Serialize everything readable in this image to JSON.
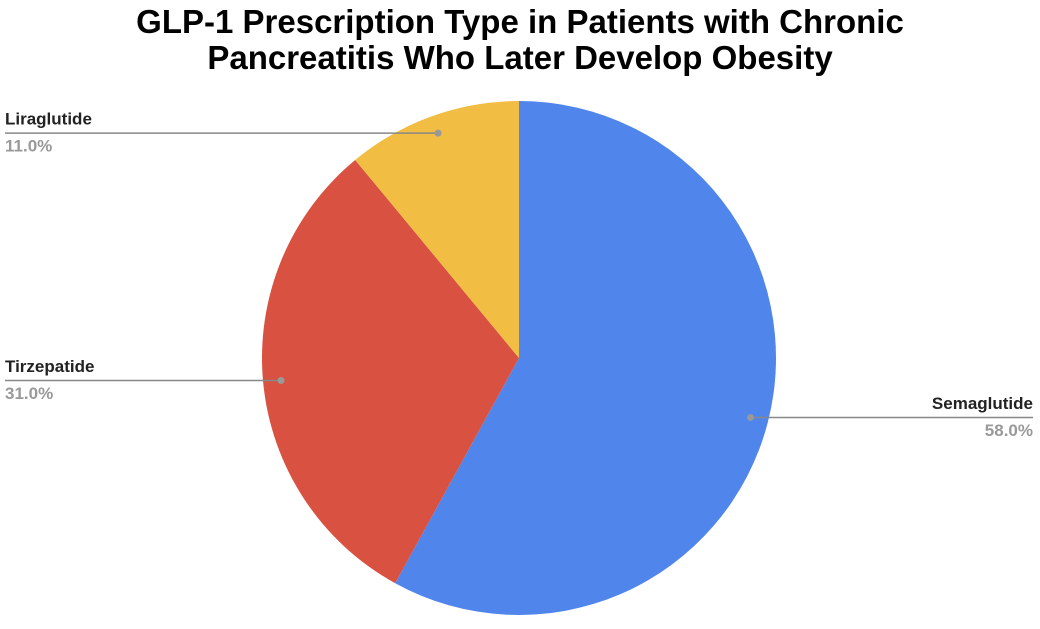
{
  "chart_data": {
    "type": "pie",
    "title": "GLP-1 Prescription Type in Patients with Chronic Pancreatitis Who Later Develop Obesity",
    "categories": [
      "Semaglutide",
      "Tirzepatide",
      "Liraglutide"
    ],
    "values": [
      58,
      31,
      11
    ],
    "value_labels": [
      "58.0%",
      "31.0%",
      "11.0%"
    ],
    "colors": [
      "#5085ec",
      "#d95140",
      "#f1bd42"
    ]
  }
}
